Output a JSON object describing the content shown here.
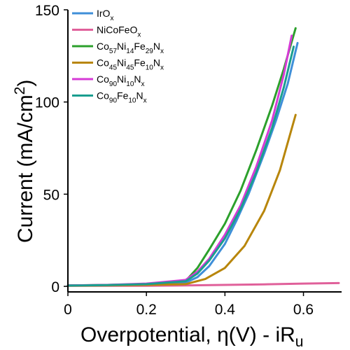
{
  "chart_data": {
    "type": "line",
    "title": "",
    "xlabel": "Overpotential, η(V) - iR",
    "xlabel_sub": "u",
    "ylabel": "Current (mA/cm",
    "ylabel_sup": "2",
    "ylabel_end": ")",
    "xlim": [
      0,
      0.69
    ],
    "ylim": [
      -3,
      150
    ],
    "xticks": [
      0,
      0.2,
      0.4,
      0.6
    ],
    "xtick_labels": [
      "0",
      "0.2",
      "0.4",
      "0.6"
    ],
    "yticks": [
      0,
      50,
      100,
      150
    ],
    "ytick_labels": [
      "0",
      "50",
      "100",
      "150"
    ],
    "grid": false,
    "legend_position": "top-left",
    "series": [
      {
        "name": "IrOx",
        "base": "IrO",
        "sub": "x",
        "color": "#3f8fd8",
        "x": [
          0,
          0.1,
          0.2,
          0.3,
          0.33,
          0.36,
          0.4,
          0.43,
          0.46,
          0.5,
          0.53,
          0.56,
          0.585
        ],
        "y": [
          0.5,
          0.7,
          1.0,
          2.0,
          5,
          11,
          23,
          36,
          50,
          72,
          90,
          110,
          132
        ]
      },
      {
        "name": "NiCoFeOx",
        "base": "NiCoFeO",
        "sub": "x",
        "color": "#e0609a",
        "x": [
          0,
          0.2,
          0.3,
          0.4,
          0.5,
          0.6,
          0.69
        ],
        "y": [
          0.3,
          0.3,
          0.5,
          0.8,
          1.1,
          1.5,
          1.8
        ]
      },
      {
        "name": "Co57Ni14Fe29Nx",
        "base": "Co57Ni14Fe29N",
        "sub": "x",
        "color": "#2ca02c",
        "x": [
          0,
          0.1,
          0.2,
          0.3,
          0.33,
          0.36,
          0.4,
          0.44,
          0.48,
          0.52,
          0.55,
          0.58
        ],
        "y": [
          0.5,
          0.8,
          1.2,
          3.0,
          10,
          20,
          34,
          52,
          74,
          98,
          118,
          140
        ]
      },
      {
        "name": "Co45Ni45Fe10Nx",
        "base": "Co45Ni45Fe10N",
        "sub": "x",
        "color": "#b8860b",
        "x": [
          0,
          0.1,
          0.2,
          0.3,
          0.35,
          0.4,
          0.45,
          0.5,
          0.54,
          0.58
        ],
        "y": [
          0.3,
          0.5,
          0.8,
          1.2,
          4,
          10,
          22,
          41,
          63,
          93
        ]
      },
      {
        "name": "Co90Ni10Nx",
        "base": "Co90Ni10N",
        "sub": "x",
        "color": "#d63ad6",
        "x": [
          0,
          0.1,
          0.2,
          0.3,
          0.33,
          0.36,
          0.4,
          0.44,
          0.48,
          0.52,
          0.55,
          0.57
        ],
        "y": [
          0.5,
          0.8,
          1.5,
          3.5,
          8,
          15,
          28,
          44,
          65,
          90,
          115,
          136
        ]
      },
      {
        "name": "Co90Fe10Nx",
        "base": "Co90Fe10N",
        "sub": "x",
        "color": "#1a9e8f",
        "x": [
          0,
          0.1,
          0.2,
          0.3,
          0.33,
          0.36,
          0.4,
          0.44,
          0.48,
          0.52,
          0.55,
          0.575
        ],
        "y": [
          0.4,
          0.7,
          1.2,
          2.8,
          7,
          14,
          26,
          42,
          62,
          86,
          108,
          130
        ]
      }
    ],
    "legend": [
      {
        "parts": [
          [
            "IrO",
            "n"
          ],
          [
            "x",
            "sub"
          ]
        ]
      },
      {
        "parts": [
          [
            "NiCoFeO",
            "n"
          ],
          [
            "x",
            "sub"
          ]
        ]
      },
      {
        "parts": [
          [
            "Co",
            "n"
          ],
          [
            "57",
            "sub"
          ],
          [
            "Ni",
            "n"
          ],
          [
            "14",
            "sub"
          ],
          [
            "Fe",
            "n"
          ],
          [
            "29",
            "sub"
          ],
          [
            "N",
            "n"
          ],
          [
            "x",
            "sub"
          ]
        ]
      },
      {
        "parts": [
          [
            "Co",
            "n"
          ],
          [
            "45",
            "sub"
          ],
          [
            "Ni",
            "n"
          ],
          [
            "45",
            "sub"
          ],
          [
            "Fe",
            "n"
          ],
          [
            "10",
            "sub"
          ],
          [
            "N",
            "n"
          ],
          [
            "x",
            "sub"
          ]
        ]
      },
      {
        "parts": [
          [
            "Co",
            "n"
          ],
          [
            "90",
            "sub"
          ],
          [
            "Ni",
            "n"
          ],
          [
            "10",
            "sub"
          ],
          [
            "N",
            "n"
          ],
          [
            "x",
            "sub"
          ]
        ]
      },
      {
        "parts": [
          [
            "Co",
            "n"
          ],
          [
            "90",
            "sub"
          ],
          [
            "Fe",
            "n"
          ],
          [
            "10",
            "sub"
          ],
          [
            "N",
            "n"
          ],
          [
            "x",
            "sub"
          ]
        ]
      }
    ]
  }
}
